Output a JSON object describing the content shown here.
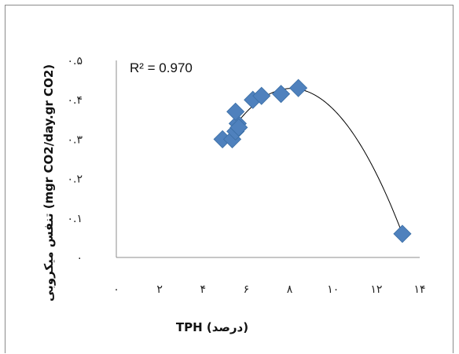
{
  "chart_data": {
    "type": "scatter",
    "annotation": "R² = 0.970",
    "xlabel": "TPH  (درصد)",
    "ylabel": "تنفس میکروبی (mgr CO2/day.gr CO2)",
    "xlim": [
      0,
      14
    ],
    "ylim": [
      0,
      0.5
    ],
    "x_tick_labels": [
      "۰",
      "۲",
      "۴",
      "۶",
      "۸",
      "۱۰",
      "۱۲",
      "۱۴"
    ],
    "y_tick_labels": [
      "۰",
      "۰.۱",
      "۰.۲",
      "۰.۳",
      "۰.۴",
      "۰.۵"
    ],
    "x_tick_values": [
      0,
      2,
      4,
      6,
      8,
      10,
      12,
      14
    ],
    "y_tick_values": [
      0,
      0.1,
      0.2,
      0.3,
      0.4,
      0.5
    ],
    "marker_color": "#4f81bd",
    "series": [
      {
        "x": [
          4.9,
          5.35,
          5.5,
          5.6,
          5.65,
          5.5,
          6.3,
          6.7,
          7.6,
          8.4,
          13.2
        ],
        "y": [
          0.3,
          0.3,
          0.32,
          0.34,
          0.33,
          0.37,
          0.4,
          0.41,
          0.415,
          0.43,
          0.06
        ]
      }
    ],
    "trendline": {
      "type": "polynomial",
      "x_range": [
        5.0,
        13.1
      ]
    }
  }
}
